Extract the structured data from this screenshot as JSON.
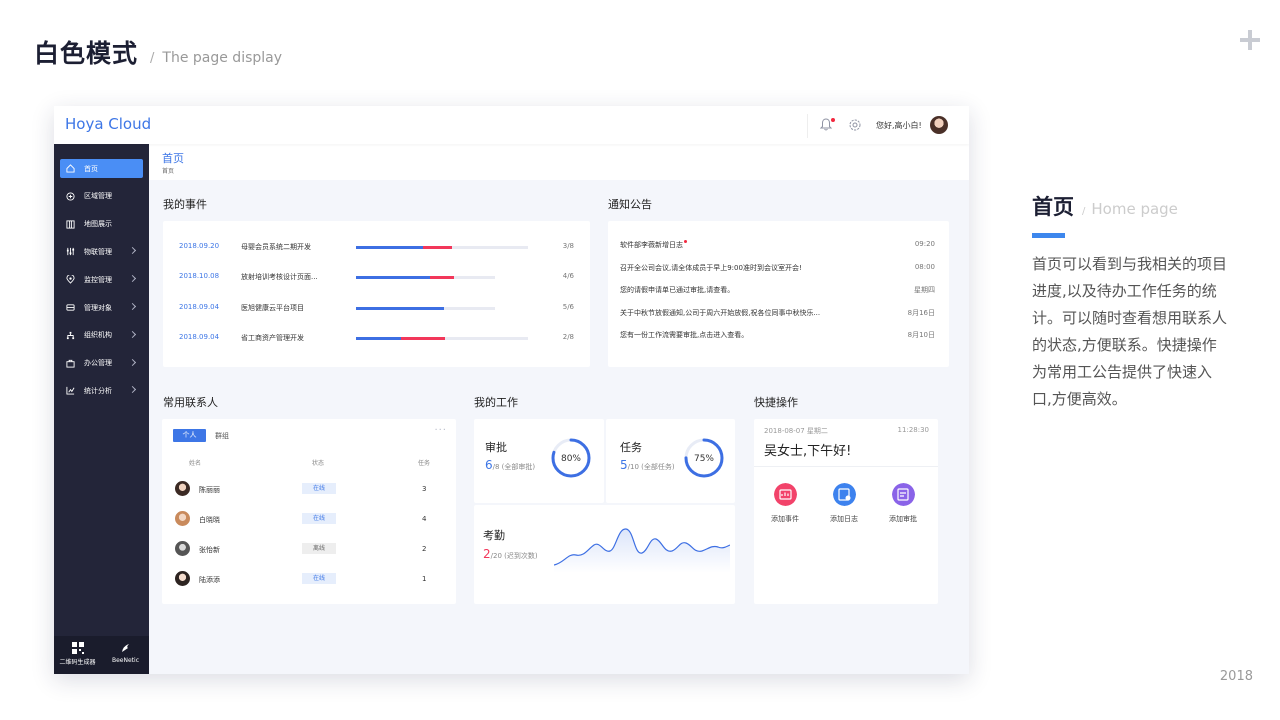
{
  "slide": {
    "title": "白色模式",
    "separator": "/",
    "subtitle": "The page display",
    "year": "2018"
  },
  "app": {
    "brand": "Hoya Cloud",
    "greeting": "您好,高小白!",
    "sidebar": {
      "items": [
        {
          "label": "首页",
          "icon": "home-icon",
          "active": true
        },
        {
          "label": "区域管理",
          "icon": "region-icon"
        },
        {
          "label": "地图展示",
          "icon": "map-icon"
        },
        {
          "label": "物联管理",
          "icon": "iot-icon"
        },
        {
          "label": "监控管理",
          "icon": "monitor-icon"
        },
        {
          "label": "管理对象",
          "icon": "object-icon"
        },
        {
          "label": "组织机构",
          "icon": "org-icon"
        },
        {
          "label": "办公管理",
          "icon": "office-icon"
        },
        {
          "label": "统计分析",
          "icon": "chart-icon"
        }
      ],
      "bottom": [
        {
          "label": "二维码生成器",
          "icon": "qrcode-icon"
        },
        {
          "label": "BeeNetic",
          "icon": "brand-logo-icon"
        }
      ]
    },
    "breadcrumb": {
      "title": "首页",
      "sub": "首页"
    },
    "events": {
      "title": "我的事件",
      "rows": [
        {
          "date": "2018.09.20",
          "name": "母婴会员系统二期开发",
          "count": "3/8",
          "blue": 0.39,
          "red": 0.17,
          "track": 1.0
        },
        {
          "date": "2018.10.08",
          "name": "放射培训考核设计页面...",
          "count": "4/6",
          "blue": 0.43,
          "red": 0.14,
          "track": 0.81
        },
        {
          "date": "2018.09.04",
          "name": "医旭健康云平台项目",
          "count": "5/6",
          "blue": 0.51,
          "red": 0.0,
          "track": 0.81
        },
        {
          "date": "2018.09.04",
          "name": "省工商资产管理开发",
          "count": "2/8",
          "blue": 0.26,
          "red": 0.26,
          "track": 1.0
        }
      ]
    },
    "notices": {
      "title": "通知公告",
      "rows": [
        {
          "text": "软件部李薇新增日志",
          "time": "09:20",
          "dot": true
        },
        {
          "text": "召开全公司会议,请全体成员于早上9:00准时到会议室开会!",
          "time": "08:00"
        },
        {
          "text": "您的请假申请单已通过审批,请查看。",
          "time": "星期四"
        },
        {
          "text": "关于中秋节放假通知,公司于周六开始放假,祝各位同事中秋快乐...",
          "time": "8月16日"
        },
        {
          "text": "您有一份工作流需要审批,点击进入查看。",
          "time": "8月10日"
        }
      ]
    },
    "contacts": {
      "title": "常用联系人",
      "tab_active": "个人",
      "tab_inactive": "群组",
      "more": "···",
      "col_name": "姓名",
      "col_status": "状态",
      "col_task": "任务",
      "rows": [
        {
          "name": "陈丽丽",
          "status": "在线",
          "online": true,
          "task": "3"
        },
        {
          "name": "白晓晓",
          "status": "在线",
          "online": true,
          "task": "4"
        },
        {
          "name": "张怡新",
          "status": "离线",
          "online": false,
          "task": "2"
        },
        {
          "name": "陆添添",
          "status": "在线",
          "online": true,
          "task": "1"
        }
      ]
    },
    "work": {
      "title": "我的工作",
      "approval": {
        "label": "审批",
        "value": "6",
        "suffix": "/8 (全部审批)",
        "percent_label": "80%",
        "percent": 0.8
      },
      "task": {
        "label": "任务",
        "value": "5",
        "suffix": "/10 (全部任务)",
        "percent_label": "75%",
        "percent": 0.75
      },
      "attendance": {
        "label": "考勤",
        "value": "2",
        "suffix": "/20 (迟到次数)"
      }
    },
    "quick": {
      "title": "快捷操作",
      "date": "2018-08-07  星期二",
      "time": "11:28:30",
      "greeting": "吴女士,下午好!",
      "buttons": [
        {
          "label": "添加事件",
          "icon": "add-event-icon",
          "color": "#f2436a"
        },
        {
          "label": "添加日志",
          "icon": "add-log-icon",
          "color": "#3d82ee"
        },
        {
          "label": "添加审批",
          "icon": "add-approval-icon",
          "color": "#8a63e8"
        }
      ]
    }
  },
  "description": {
    "title": "首页",
    "separator": "/",
    "subtitle": "Home page",
    "lines": [
      "首页可以看到与我相关的项目",
      "进度,以及待办工作任务的统",
      "计。可以随时查看想用联系人",
      "的状态,方便联系。快捷操作",
      "为常用工公告提供了快速入",
      "口,方便高效。"
    ]
  },
  "colors": {
    "accent": "#3d76e6",
    "sidebar": "#232539",
    "alert": "#f2375a"
  }
}
